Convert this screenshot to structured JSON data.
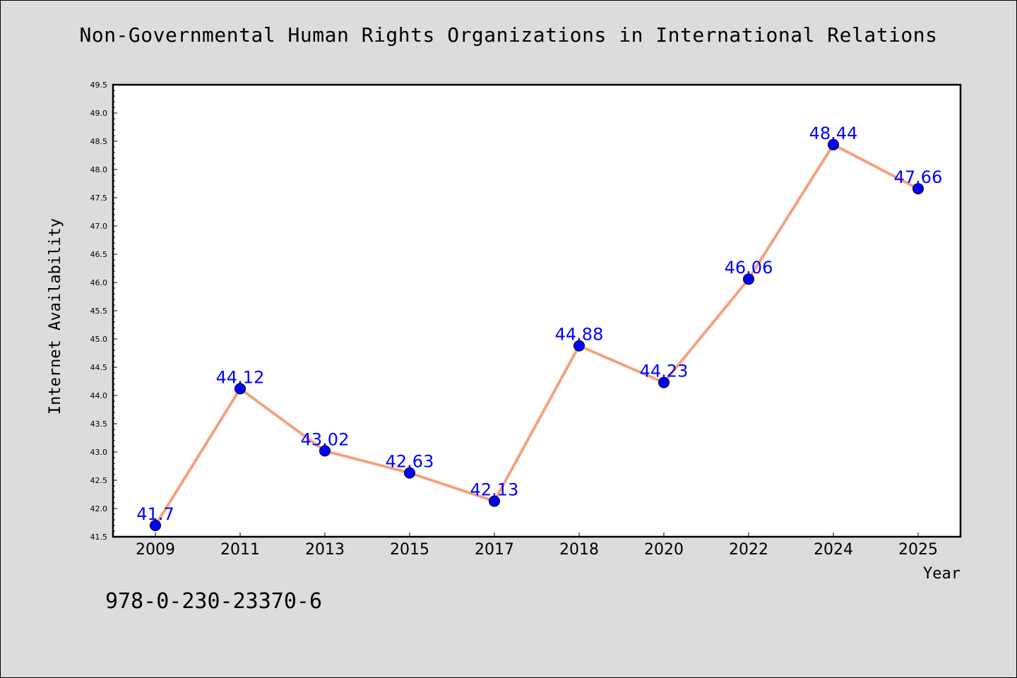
{
  "chart_data": {
    "type": "line",
    "title": "Non-Governmental Human Rights Organizations in International Relations",
    "xlabel": "Year",
    "ylabel": "Internet Availability",
    "categories": [
      "2009",
      "2011",
      "2013",
      "2015",
      "2017",
      "2018",
      "2020",
      "2022",
      "2024",
      "2025"
    ],
    "series": [
      {
        "values": [
          41.7,
          44.12,
          43.02,
          42.63,
          42.13,
          44.88,
          44.23,
          46.06,
          48.44,
          47.66
        ],
        "labels": [
          "41.7",
          "44.12",
          "43.02",
          "42.63",
          "42.13",
          "44.88",
          "44.23",
          "46.06",
          "48.44",
          "47.66"
        ]
      }
    ],
    "ylim": [
      41.5,
      49.5
    ],
    "yticks": [
      "41.5",
      "42.0",
      "42.5",
      "43.0",
      "43.5",
      "44.0",
      "44.5",
      "45.0",
      "45.5",
      "46.0",
      "46.5",
      "47.0",
      "47.5",
      "48.0",
      "48.5",
      "49.0",
      "49.5"
    ],
    "grid": false,
    "legend": "none",
    "colors": {
      "line": "#f4a27f",
      "marker": "#0000ff",
      "data_label": "#0000ff",
      "plot_background": "#ffffff",
      "figure_background": "#dcdcdc"
    }
  },
  "footer": {
    "isbn": "978-0-230-23370-6"
  }
}
